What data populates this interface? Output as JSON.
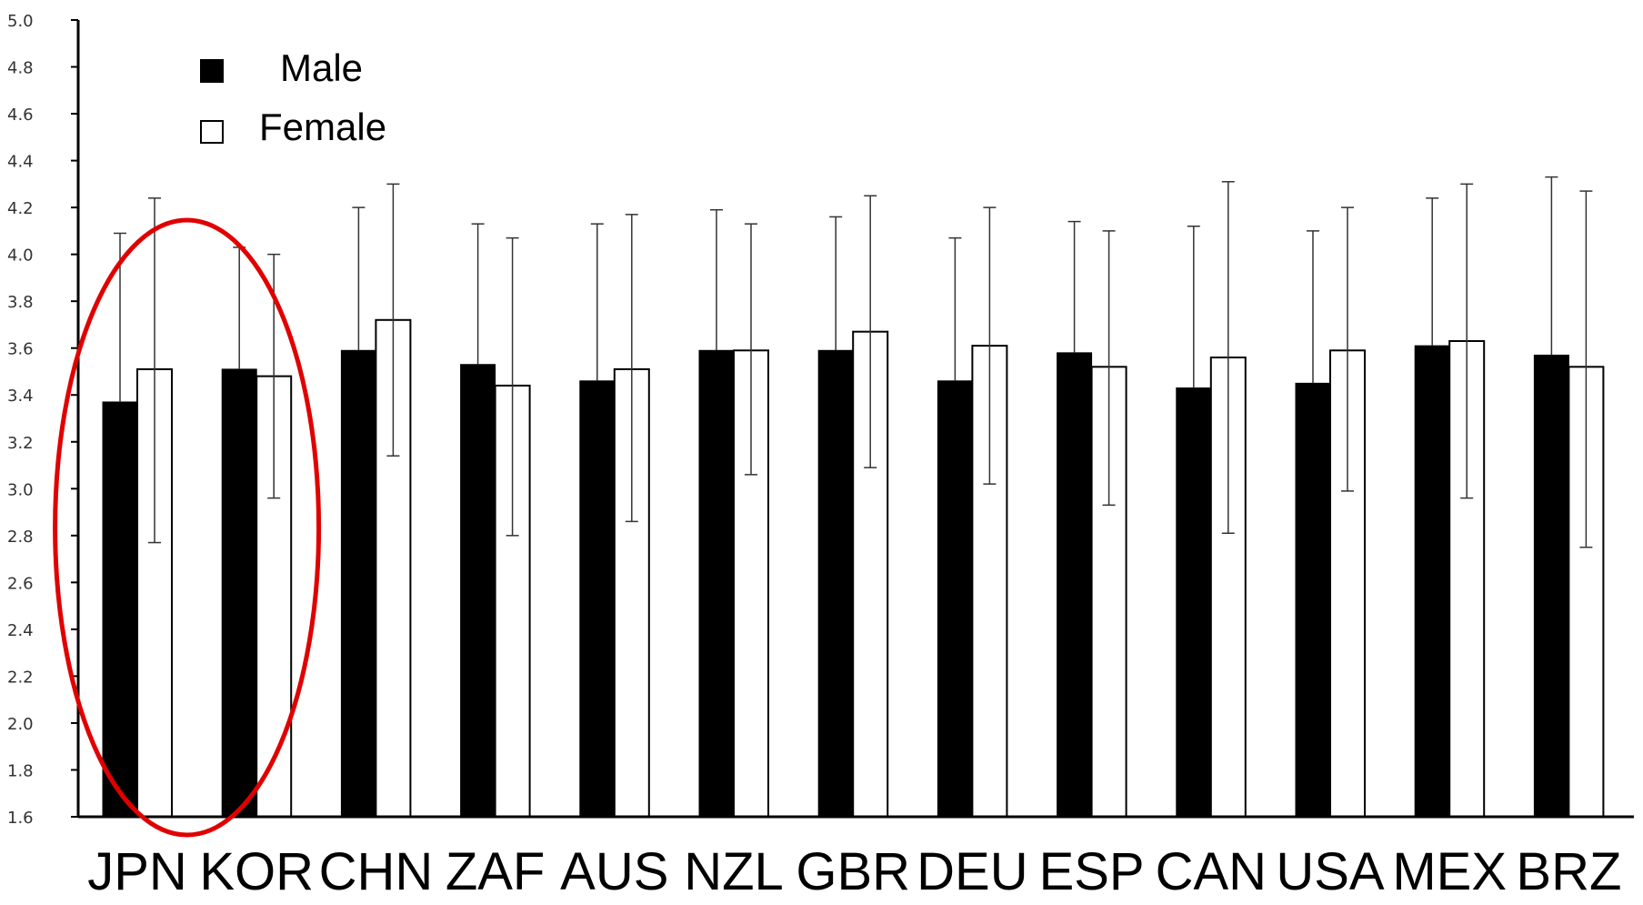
{
  "chart_data": {
    "type": "bar",
    "categories": [
      "JPN",
      "KOR",
      "CHN",
      "ZAF",
      "AUS",
      "NZL",
      "GBR",
      "DEU",
      "ESP",
      "CAN",
      "USA",
      "MEX",
      "BRZ"
    ],
    "series": [
      {
        "name": "Male",
        "color": "#000000",
        "values": [
          3.37,
          3.51,
          3.59,
          3.53,
          3.46,
          3.59,
          3.59,
          3.46,
          3.58,
          3.43,
          3.45,
          3.61,
          3.57
        ],
        "error_upper": [
          4.09,
          4.03,
          4.2,
          4.13,
          4.13,
          4.19,
          4.16,
          4.07,
          4.14,
          4.12,
          4.1,
          4.24,
          4.33
        ]
      },
      {
        "name": "Female",
        "color": "#ffffff",
        "values": [
          3.51,
          3.48,
          3.72,
          3.44,
          3.51,
          3.59,
          3.67,
          3.61,
          3.52,
          3.56,
          3.59,
          3.63,
          3.52
        ],
        "error_lower": [
          2.77,
          2.96,
          3.14,
          2.8,
          2.86,
          3.06,
          3.09,
          3.02,
          2.93,
          2.81,
          2.99,
          2.96,
          2.75
        ],
        "error_upper": [
          4.24,
          4.0,
          4.3,
          4.07,
          4.17,
          4.13,
          4.25,
          4.2,
          4.1,
          4.31,
          4.2,
          4.3,
          4.27
        ]
      }
    ],
    "yticks": [
      "1.6",
      "1.8",
      "2.0",
      "2.2",
      "2.4",
      "2.6",
      "2.8",
      "3.0",
      "3.2",
      "3.4",
      "3.6",
      "3.8",
      "4.0",
      "4.2",
      "4.4",
      "4.6",
      "4.8",
      "5.0"
    ],
    "ylim": [
      1.6,
      5.0
    ],
    "title": "",
    "xlabel": "",
    "ylabel": "",
    "legend": "top-left",
    "grid": false,
    "annotation": {
      "shape": "ellipse",
      "color": "#e00000",
      "highlights": [
        "JPN",
        "KOR"
      ]
    }
  }
}
